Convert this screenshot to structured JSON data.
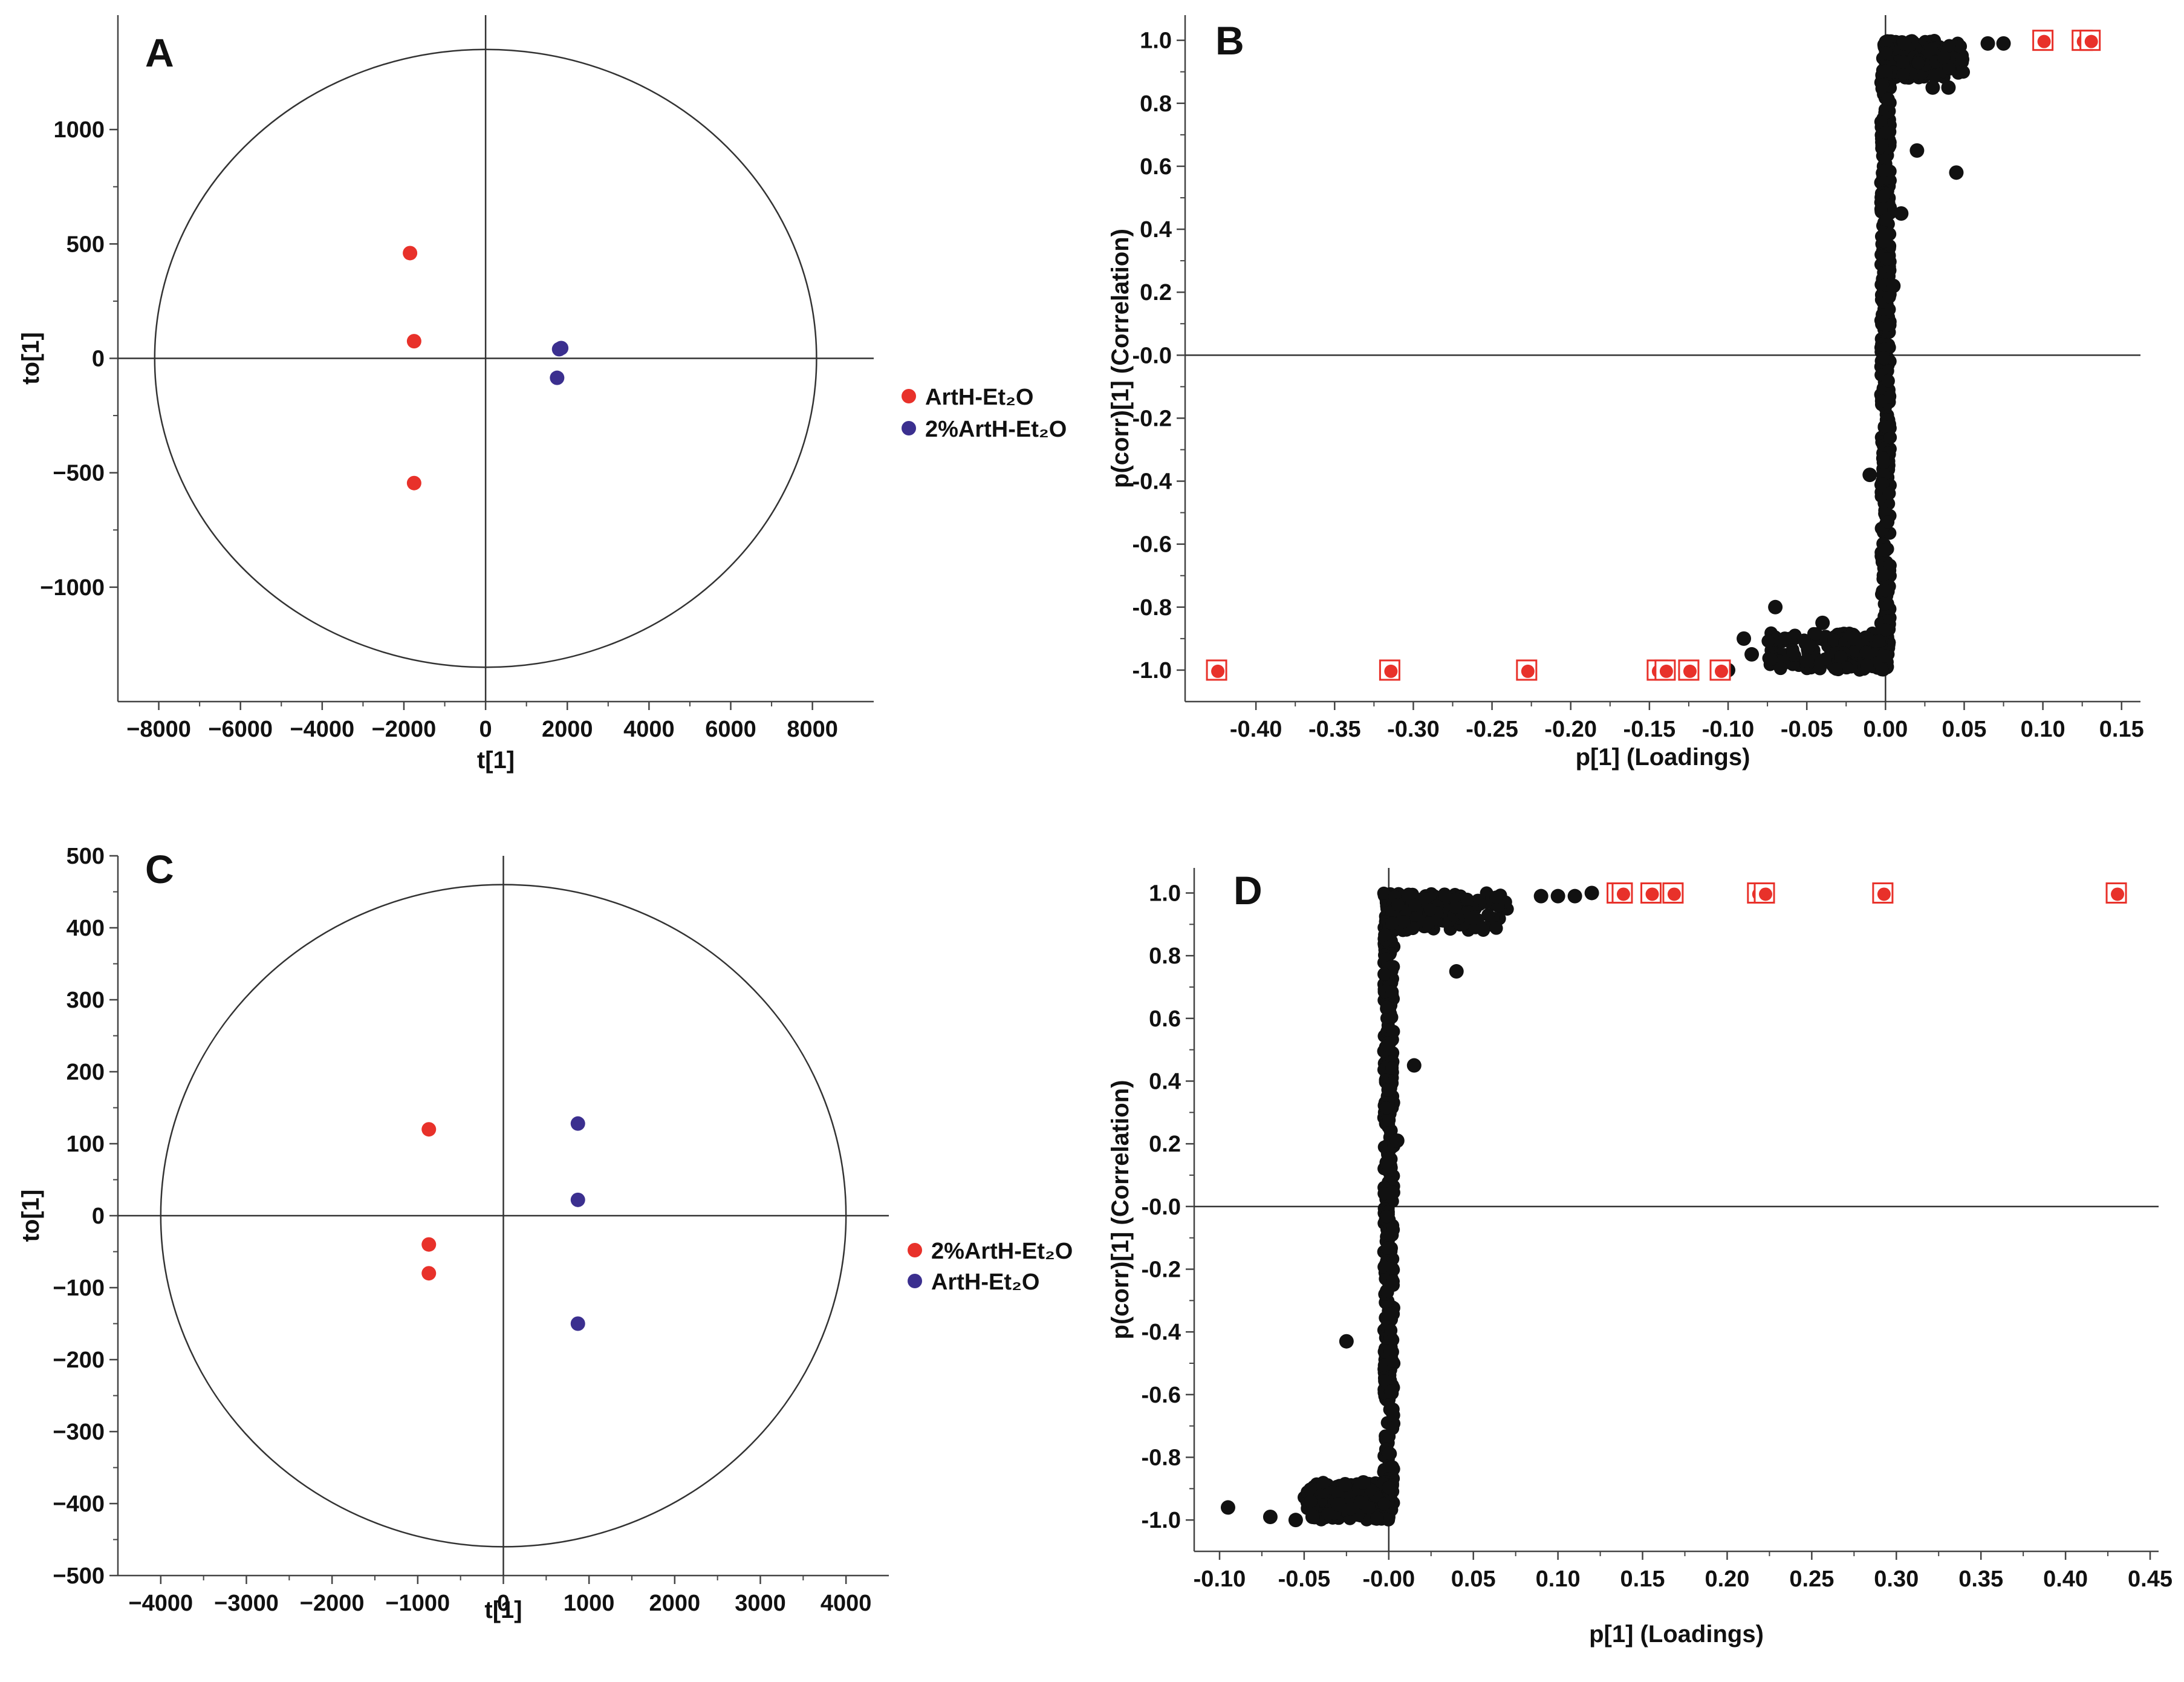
{
  "chart_data": [
    {
      "panel": "A",
      "type": "scatter",
      "subtype": "OPLS-DA score plot",
      "xlabel": "t[1]",
      "ylabel": "to[1]",
      "xlim": [
        -9000,
        9500
      ],
      "ylim": [
        -1500,
        1500
      ],
      "xticks": [
        -8000,
        -6000,
        -4000,
        -2000,
        0,
        2000,
        4000,
        6000,
        8000
      ],
      "xtick_labels": [
        "−8000",
        "−6000",
        "−4000",
        "−2000",
        "0",
        "2000",
        "4000",
        "6000",
        "8000"
      ],
      "yticks": [
        -1000,
        -500,
        0,
        500,
        1000
      ],
      "ytick_labels": [
        "−1000",
        "−500",
        "0",
        "500",
        "1000"
      ],
      "ellipse": {
        "rx": 8100,
        "ry": 1350
      },
      "series": [
        {
          "name": "ArtH-Et₂O",
          "color": "#e8312a",
          "points": [
            [
              -1850,
              460
            ],
            [
              -1750,
              75
            ],
            [
              -1750,
              -545
            ]
          ]
        },
        {
          "name": "2%ArtH-Et₂O",
          "color": "#3b2f8f",
          "points": [
            [
              1800,
              40
            ],
            [
              1850,
              45
            ],
            [
              1750,
              -85
            ]
          ]
        }
      ],
      "legend_position": "right"
    },
    {
      "panel": "B",
      "type": "scatter",
      "subtype": "S-plot",
      "xlabel": "p[1] (Loadings)",
      "ylabel": "p(corr)[1] (Correlation)",
      "xlim": [
        -0.445,
        0.162
      ],
      "ylim": [
        -1.1,
        1.08
      ],
      "xticks": [
        -0.4,
        -0.35,
        -0.3,
        -0.25,
        -0.2,
        -0.15,
        -0.1,
        -0.05,
        0.0,
        0.05,
        0.1,
        0.15
      ],
      "xtick_labels": [
        "-0.40",
        "-0.35",
        "-0.30",
        "-0.25",
        "-0.20",
        "-0.15",
        "-0.10",
        "-0.05",
        "0.00",
        "0.05",
        "0.10",
        "0.15"
      ],
      "yticks": [
        -1.0,
        -0.8,
        -0.6,
        -0.4,
        -0.2,
        0.0,
        0.2,
        0.4,
        0.6,
        0.8,
        1.0
      ],
      "ytick_labels": [
        "-1.0",
        "-0.8",
        "-0.6",
        "-0.4",
        "-0.2",
        "-0.0",
        "0.2",
        "0.4",
        "0.6",
        "0.8",
        "1.0"
      ],
      "series": [
        {
          "name": "variables",
          "color": "#111111",
          "marker": "circle",
          "points": [
            [
              0.075,
              0.99
            ],
            [
              0.065,
              0.99
            ],
            [
              0.04,
              0.85
            ],
            [
              0.045,
              0.58
            ],
            [
              0.02,
              0.65
            ],
            [
              0.03,
              0.85
            ],
            [
              0.01,
              0.45
            ],
            [
              0.005,
              0.22
            ],
            [
              -0.01,
              -0.38
            ],
            [
              -0.07,
              -0.8
            ],
            [
              -0.09,
              -0.9
            ],
            [
              -0.085,
              -0.95
            ],
            [
              -0.1,
              -1.0
            ],
            [
              -0.04,
              -0.85
            ],
            [
              -0.02,
              -0.9
            ],
            [
              -0.05,
              -0.97
            ]
          ]
        },
        {
          "name": "selected variables",
          "color": "#e8312a",
          "marker": "boxed-circle",
          "points": [
            [
              -0.425,
              -1.0
            ],
            [
              -0.315,
              -1.0
            ],
            [
              -0.228,
              -1.0
            ],
            [
              -0.145,
              -1.0
            ],
            [
              -0.14,
              -1.0
            ],
            [
              -0.125,
              -1.0
            ],
            [
              -0.105,
              -1.0
            ],
            [
              0.1,
              1.0
            ],
            [
              0.125,
              1.0
            ],
            [
              0.13,
              1.0
            ]
          ]
        }
      ],
      "dense_band": "s-curve"
    },
    {
      "panel": "C",
      "type": "scatter",
      "subtype": "OPLS-DA score plot",
      "xlabel": "t[1]",
      "ylabel": "to[1]",
      "xlim": [
        -4500,
        4500
      ],
      "ylim": [
        -500,
        500
      ],
      "xticks": [
        -4000,
        -3000,
        -2000,
        -1000,
        0,
        1000,
        2000,
        3000,
        4000
      ],
      "xtick_labels": [
        "−4000",
        "−3000",
        "−2000",
        "−1000",
        "0",
        "1000",
        "2000",
        "3000",
        "4000"
      ],
      "yticks": [
        -500,
        -400,
        -300,
        -200,
        -100,
        0,
        100,
        200,
        300,
        400,
        500
      ],
      "ytick_labels": [
        "−500",
        "−400",
        "−300",
        "−200",
        "−100",
        "0",
        "100",
        "200",
        "300",
        "400",
        "500"
      ],
      "ellipse": {
        "rx": 4000,
        "ry": 460
      },
      "series": [
        {
          "name": "2%ArtH-Et₂O",
          "color": "#e8312a",
          "points": [
            [
              -870,
              120
            ],
            [
              -870,
              -40
            ],
            [
              -870,
              -80
            ]
          ]
        },
        {
          "name": "ArtH-Et₂O",
          "color": "#3b2f8f",
          "points": [
            [
              870,
              128
            ],
            [
              870,
              22
            ],
            [
              870,
              -150
            ]
          ]
        }
      ],
      "legend_position": "right"
    },
    {
      "panel": "D",
      "type": "scatter",
      "subtype": "S-plot",
      "xlabel": "p[1] (Loadings)",
      "ylabel": "p(corr)[1] (Correlation)",
      "xlim": [
        -0.115,
        0.455
      ],
      "ylim": [
        -1.1,
        1.08
      ],
      "xticks": [
        -0.1,
        -0.05,
        0.0,
        0.05,
        0.1,
        0.15,
        0.2,
        0.25,
        0.3,
        0.35,
        0.4,
        0.45
      ],
      "xtick_labels": [
        "-0.10",
        "-0.05",
        "-0.00",
        "0.05",
        "0.10",
        "0.15",
        "0.20",
        "0.25",
        "0.30",
        "0.35",
        "0.40",
        "0.45"
      ],
      "yticks": [
        -1.0,
        -0.8,
        -0.6,
        -0.4,
        -0.2,
        0.0,
        0.2,
        0.4,
        0.6,
        0.8,
        1.0
      ],
      "ytick_labels": [
        "-1.0",
        "-0.8",
        "-0.6",
        "-0.4",
        "-0.2",
        "-0.0",
        "0.2",
        "0.4",
        "0.6",
        "0.8",
        "1.0"
      ],
      "series": [
        {
          "name": "variables",
          "color": "#111111",
          "marker": "circle",
          "points": [
            [
              -0.095,
              -0.96
            ],
            [
              -0.07,
              -0.99
            ],
            [
              -0.055,
              -1.0
            ],
            [
              -0.045,
              -0.99
            ],
            [
              -0.03,
              -0.95
            ],
            [
              -0.025,
              -0.43
            ],
            [
              -0.015,
              -0.88
            ],
            [
              0.005,
              0.21
            ],
            [
              0.015,
              0.45
            ],
            [
              0.04,
              0.75
            ],
            [
              0.05,
              0.92
            ],
            [
              0.09,
              0.99
            ],
            [
              0.1,
              0.99
            ],
            [
              0.11,
              0.99
            ],
            [
              0.12,
              1.0
            ]
          ]
        },
        {
          "name": "selected variables",
          "color": "#e8312a",
          "marker": "boxed-circle",
          "points": [
            [
              0.135,
              1.0
            ],
            [
              0.138,
              1.0
            ],
            [
              0.155,
              1.0
            ],
            [
              0.168,
              1.0
            ],
            [
              0.218,
              1.0
            ],
            [
              0.222,
              1.0
            ],
            [
              0.292,
              1.0
            ],
            [
              0.43,
              1.0
            ]
          ]
        }
      ],
      "dense_band": "s-curve"
    }
  ],
  "legends": {
    "A": {
      "items": [
        {
          "label": "ArtH-Et₂O",
          "color": "#e8312a"
        },
        {
          "label": "2%ArtH-Et₂O",
          "color": "#3b2f8f"
        }
      ]
    },
    "C": {
      "items": [
        {
          "label": "2%ArtH-Et₂O",
          "color": "#e8312a"
        },
        {
          "label": "ArtH-Et₂O",
          "color": "#3b2f8f"
        }
      ]
    }
  }
}
